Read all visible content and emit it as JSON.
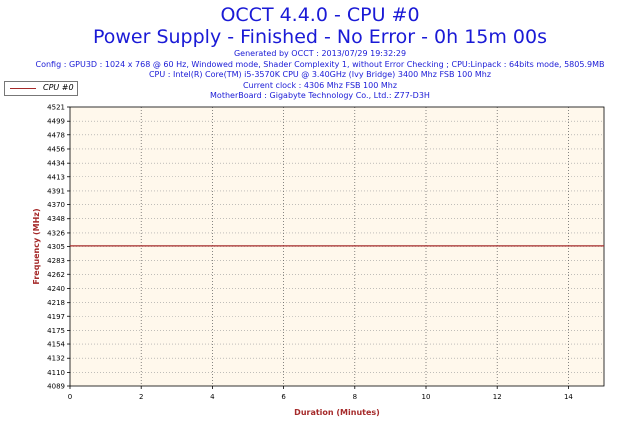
{
  "header": {
    "title_line1": "OCCT 4.4.0 - CPU #0",
    "title_line2": "Power Supply - Finished - No Error - 0h 15m 00s",
    "info_lines": [
      "Generated by OCCT : 2013/07/29 19:32:29",
      "Config : GPU3D : 1024 x 768 @ 60 Hz, Windowed mode, Shader Complexity 1, without Error Checking ; CPU:Linpack : 64bits mode, 5805.9MB",
      "CPU : Intel(R) Core(TM) i5-3570K CPU @ 3.40GHz (Ivy Bridge) 3400 Mhz FSB 100 Mhz",
      "Current clock : 4306 Mhz FSB 100 Mhz",
      "MotherBoard : Gigabyte Technology Co., Ltd.: Z77-D3H"
    ]
  },
  "colors": {
    "title": "#1a1ad6",
    "series": "#a52a2a",
    "plot_bg": "#fff8ec",
    "axis_title": "#a52a2a"
  },
  "chart_data": {
    "type": "line",
    "xlabel": "Duration (Minutes)",
    "ylabel": "Frequency (MHz)",
    "xlim": [
      0,
      15
    ],
    "ylim": [
      4089,
      4521
    ],
    "x_ticks": [
      0,
      2,
      4,
      6,
      8,
      10,
      12,
      14
    ],
    "y_ticks": [
      4089,
      4110,
      4132,
      4154,
      4175,
      4197,
      4218,
      4240,
      4262,
      4283,
      4305,
      4326,
      4348,
      4370,
      4391,
      4413,
      4434,
      4456,
      4478,
      4499,
      4521
    ],
    "grid": true,
    "legend": "top-left",
    "series": [
      {
        "name": "CPU #0",
        "x": [
          0,
          15
        ],
        "y": [
          4306,
          4306
        ]
      }
    ]
  }
}
